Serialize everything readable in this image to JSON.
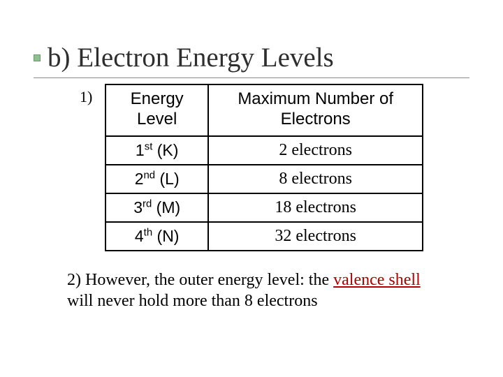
{
  "title": "b)  Electron Energy Levels",
  "list_marker": "1)",
  "table": {
    "headers": {
      "level": "Energy Level",
      "max": "Maximum Number of Electrons"
    },
    "rows": [
      {
        "ord": "1",
        "sup": "st",
        "shell": " (K)",
        "electrons": "2 electrons"
      },
      {
        "ord": "2",
        "sup": "nd",
        "shell": " (L)",
        "electrons": "8 electrons"
      },
      {
        "ord": "3",
        "sup": "rd",
        "shell": " (M)",
        "electrons": "18 electrons"
      },
      {
        "ord": "4",
        "sup": "th",
        "shell": " (N)",
        "electrons": "32 electrons"
      }
    ],
    "border_color": "#000000",
    "cell_font_body": "Verdana",
    "cell_font_elec": "Times New Roman"
  },
  "note": {
    "prefix": "2) However, the outer energy level: the ",
    "valence": "valence shell",
    "suffix": " will never hold more than 8 electrons"
  },
  "colors": {
    "bullet_bg": "#8fbf8f",
    "bullet_border": "#6a9a6a",
    "title_text": "#2e2e2e",
    "underline": "#888888",
    "valence_text": "#b00000",
    "background": "#ffffff"
  }
}
